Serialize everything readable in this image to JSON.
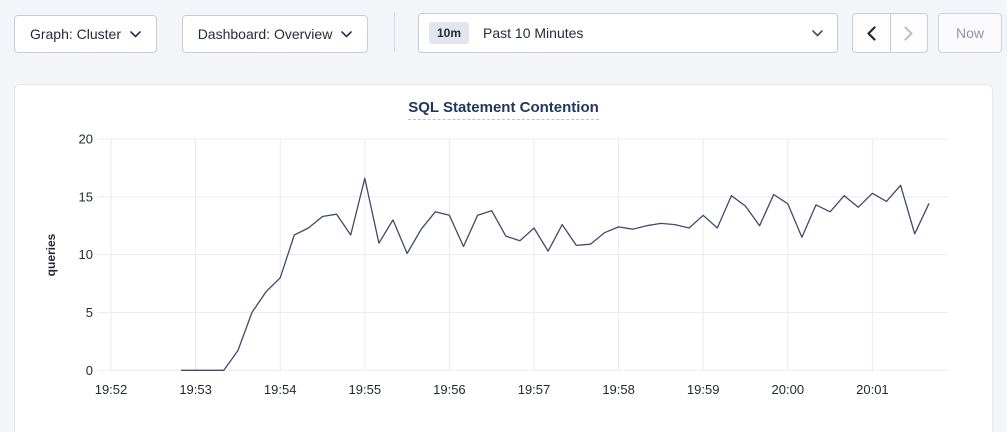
{
  "toolbar": {
    "graph_selector": {
      "label": "Graph: Cluster"
    },
    "dashboard_selector": {
      "label": "Dashboard: Overview"
    },
    "time_window": {
      "badge": "10m",
      "label": "Past 10 Minutes"
    },
    "history": {
      "prev_enabled": true,
      "next_enabled": false
    },
    "now_button": {
      "label": "Now",
      "enabled": false
    }
  },
  "colors": {
    "accent_navy": "#24365e",
    "line": "#3f4c68",
    "grid": "#e9ebf0",
    "axis_text": "#242a35",
    "disabled": "#b9c2d2"
  },
  "chart_data": {
    "type": "line",
    "title": "SQL Statement Contention",
    "ylabel": "queries",
    "ylim": [
      0,
      20
    ],
    "y_ticks": [
      0,
      5,
      10,
      15,
      20
    ],
    "x_tick_labels": [
      "19:52",
      "19:53",
      "19:54",
      "19:55",
      "19:56",
      "19:57",
      "19:58",
      "19:59",
      "20:00",
      "20:01"
    ],
    "grid": true,
    "legend": false,
    "series": [
      {
        "name": "queries",
        "start": "19:52:50",
        "interval_seconds": 10,
        "values": [
          0,
          0,
          0,
          0,
          1.7,
          5.0,
          6.8,
          8.0,
          11.7,
          12.3,
          13.3,
          13.5,
          11.7,
          16.6,
          11.0,
          13.0,
          10.1,
          12.2,
          13.7,
          13.4,
          10.7,
          13.4,
          13.8,
          11.6,
          11.2,
          12.3,
          10.3,
          12.6,
          10.8,
          10.9,
          11.9,
          12.4,
          12.2,
          12.5,
          12.7,
          12.6,
          12.3,
          13.4,
          12.3,
          15.1,
          14.2,
          12.5,
          15.2,
          14.4,
          11.5,
          14.3,
          13.7,
          15.1,
          14.1,
          15.3,
          14.6,
          16.0,
          11.8,
          14.4
        ]
      }
    ]
  }
}
